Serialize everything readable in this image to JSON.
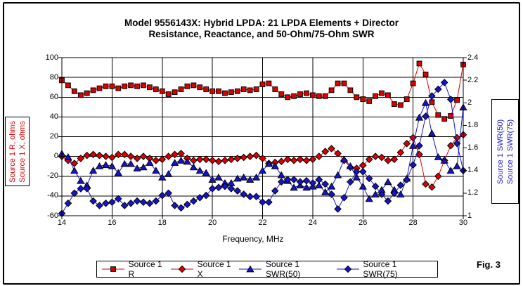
{
  "title_line1": "Model 9556143X:  Hybrid LPDA:  21 LPDA Elements + Director",
  "title_line2": "Resistance, Reactance, and 50-Ohm/75-Ohm SWR",
  "fig_label": "Fig. 3",
  "colors": {
    "resistance_reactance": "#dd0000",
    "swr": "#1515cf",
    "grid": "#000000",
    "background": "#ffffff"
  },
  "chart_data": {
    "type": "line",
    "xlabel": "Frequency, MHz",
    "x_ticks": [
      "14",
      "16",
      "18",
      "20",
      "22",
      "24",
      "26",
      "28",
      "30"
    ],
    "x_range": [
      14,
      30
    ],
    "grid": true,
    "legend_position": "bottom",
    "left_axis": {
      "label_lines": [
        "Source 1 R,  ohms",
        "Source 1 X,  ohms"
      ],
      "ticks": [
        "100",
        "80",
        "60",
        "40",
        "20",
        "0",
        "-20",
        "-40",
        "-60"
      ],
      "range": [
        -60,
        100
      ]
    },
    "right_axis": {
      "label_lines": [
        "Source 1 SWR(50)",
        "Source 1 SWR(75)"
      ],
      "ticks": [
        "2.4",
        "2.2",
        "2",
        "1.8",
        "1.6",
        "1.4",
        "1.2",
        "1"
      ],
      "range": [
        1,
        2.4
      ]
    },
    "x": [
      14,
      14.25,
      14.5,
      14.75,
      15,
      15.25,
      15.5,
      15.75,
      16,
      16.25,
      16.5,
      16.75,
      17,
      17.25,
      17.5,
      17.75,
      18,
      18.25,
      18.5,
      18.75,
      19,
      19.25,
      19.5,
      19.75,
      20,
      20.25,
      20.5,
      20.75,
      21,
      21.25,
      21.5,
      21.75,
      22,
      22.25,
      22.5,
      22.75,
      23,
      23.25,
      23.5,
      23.75,
      24,
      24.25,
      24.5,
      24.75,
      25,
      25.25,
      25.5,
      25.75,
      26,
      26.25,
      26.5,
      26.75,
      27,
      27.25,
      27.5,
      27.75,
      28,
      28.25,
      28.5,
      28.75,
      29,
      29.25,
      29.5,
      29.75,
      30
    ],
    "series": [
      {
        "name": "Source 1 R",
        "axis": "left",
        "marker": "square",
        "color": "#dd0000",
        "values": [
          77,
          72,
          66,
          62,
          64,
          67,
          69,
          71,
          71,
          69,
          71,
          72,
          71,
          72,
          70,
          68,
          66,
          63,
          65,
          68,
          71,
          72,
          70,
          68,
          66,
          66,
          64,
          65,
          66,
          68,
          67,
          68,
          73,
          74,
          68,
          63,
          60,
          61,
          63,
          64,
          62,
          61,
          61,
          67,
          74,
          74,
          67,
          60,
          58,
          56,
          61,
          64,
          62,
          53,
          52,
          58,
          74,
          94,
          83,
          55,
          42,
          38,
          41,
          57,
          93
        ]
      },
      {
        "name": "Source 1 X",
        "axis": "left",
        "marker": "diamond",
        "color": "#dd0000",
        "values": [
          0,
          -4,
          -7,
          -2,
          1,
          2,
          1,
          0,
          -1,
          2,
          2,
          0,
          -2,
          0,
          -2,
          -4,
          -3,
          0,
          2,
          3,
          -2,
          -4,
          -3,
          -3,
          -4,
          -5,
          -4,
          -3,
          -2,
          -1,
          0,
          1,
          -2,
          -7,
          -6,
          -5,
          -3,
          -4,
          -3,
          -4,
          -3,
          0,
          5,
          8,
          3,
          -4,
          -11,
          -12,
          -9,
          -3,
          0,
          -1,
          -4,
          -3,
          4,
          13,
          19,
          2,
          -28,
          -31,
          -20,
          -4,
          11,
          19,
          22
        ]
      },
      {
        "name": "Source 1 SWR(50)",
        "axis": "right",
        "marker": "triangle",
        "color": "#1515cf",
        "values": [
          1.55,
          1.52,
          1.4,
          1.31,
          1.27,
          1.4,
          1.44,
          1.45,
          1.44,
          1.38,
          1.46,
          1.46,
          1.42,
          1.43,
          1.47,
          1.4,
          1.34,
          1.37,
          1.47,
          1.49,
          1.48,
          1.43,
          1.4,
          1.38,
          1.32,
          1.34,
          1.29,
          1.29,
          1.33,
          1.34,
          1.32,
          1.34,
          1.4,
          1.46,
          1.44,
          1.36,
          1.31,
          1.25,
          1.27,
          1.25,
          1.26,
          1.27,
          1.21,
          1.26,
          1.36,
          1.5,
          1.44,
          1.34,
          1.26,
          1.15,
          1.19,
          1.23,
          1.3,
          1.23,
          1.19,
          1.33,
          1.62,
          1.87,
          2.0,
          1.73,
          1.52,
          1.49,
          1.4,
          1.44,
          1.96
        ]
      },
      {
        "name": "Source 1 SWR(75)",
        "axis": "right",
        "marker": "diamond",
        "color": "#1515cf",
        "values": [
          1.02,
          1.11,
          1.2,
          1.24,
          1.24,
          1.13,
          1.09,
          1.11,
          1.12,
          1.15,
          1.09,
          1.11,
          1.13,
          1.12,
          1.11,
          1.13,
          1.18,
          1.2,
          1.09,
          1.07,
          1.1,
          1.13,
          1.16,
          1.18,
          1.24,
          1.25,
          1.26,
          1.24,
          1.22,
          1.19,
          1.17,
          1.17,
          1.12,
          1.12,
          1.22,
          1.3,
          1.32,
          1.32,
          1.3,
          1.31,
          1.29,
          1.32,
          1.28,
          1.19,
          1.06,
          1.16,
          1.3,
          1.39,
          1.39,
          1.33,
          1.26,
          1.19,
          1.13,
          1.2,
          1.27,
          1.32,
          1.45,
          1.62,
          1.88,
          2.06,
          2.12,
          2.18,
          2.03,
          1.64,
          1.4
        ]
      }
    ]
  }
}
